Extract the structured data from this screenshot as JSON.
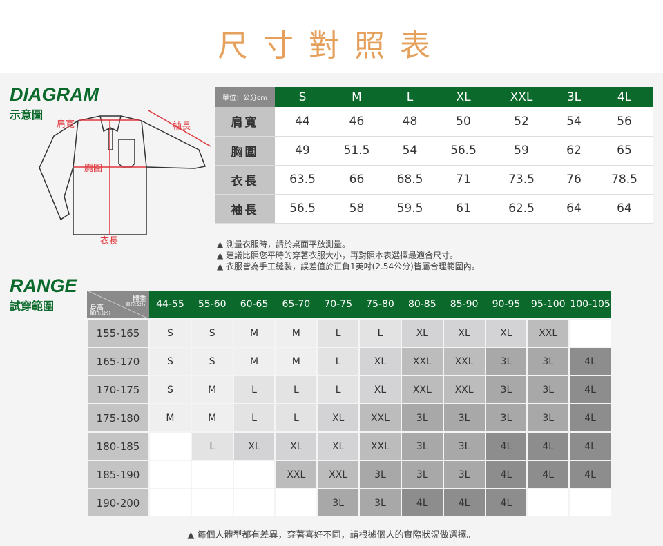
{
  "title": "尺寸對照表",
  "diagram": {
    "heading": "DIAGRAM",
    "subheading": "示意圖",
    "labels": {
      "shoulder": "肩寬",
      "sleeve": "袖長",
      "chest": "胸圍",
      "length": "衣長"
    }
  },
  "size_table": {
    "unit": "單位：公分cm",
    "sizes": [
      "S",
      "M",
      "L",
      "XL",
      "XXL",
      "3L",
      "4L"
    ],
    "rows": [
      {
        "label": "肩寬",
        "values": [
          "44",
          "46",
          "48",
          "50",
          "52",
          "54",
          "56"
        ]
      },
      {
        "label": "胸圍",
        "values": [
          "49",
          "51.5",
          "54",
          "56.5",
          "59",
          "62",
          "65"
        ]
      },
      {
        "label": "衣長",
        "values": [
          "63.5",
          "66",
          "68.5",
          "71",
          "73.5",
          "76",
          "78.5"
        ]
      },
      {
        "label": "袖長",
        "values": [
          "56.5",
          "58",
          "59.5",
          "61",
          "62.5",
          "64",
          "64"
        ]
      }
    ]
  },
  "notes": [
    "▲ 測量衣服時，請於桌面平放測量。",
    "▲ 建議比照您平時的穿著衣服大小，再對照本表選擇最適合尺寸。",
    "▲ 衣服皆為手工縫製，誤差值於正負1英吋(2.54公分)皆屬合理範圍內。"
  ],
  "range": {
    "heading": "RANGE",
    "subheading": "試穿範圍",
    "corner": {
      "weight": "體重",
      "weight_unit": "單位:公斤",
      "height": "身高",
      "height_unit": "單位:公分"
    },
    "weights": [
      "44-55",
      "55-60",
      "60-65",
      "65-70",
      "70-75",
      "75-80",
      "80-85",
      "85-90",
      "90-95",
      "95-100",
      "100-105"
    ],
    "rows": [
      {
        "label": "155-165",
        "values": [
          "S",
          "S",
          "M",
          "M",
          "L",
          "L",
          "XL",
          "XL",
          "XL",
          "XXL",
          ""
        ]
      },
      {
        "label": "165-170",
        "values": [
          "S",
          "S",
          "M",
          "M",
          "L",
          "XL",
          "XXL",
          "XXL",
          "3L",
          "3L",
          "4L"
        ]
      },
      {
        "label": "170-175",
        "values": [
          "S",
          "M",
          "L",
          "L",
          "L",
          "XL",
          "XXL",
          "XXL",
          "3L",
          "3L",
          "4L"
        ]
      },
      {
        "label": "175-180",
        "values": [
          "M",
          "M",
          "L",
          "L",
          "XL",
          "XXL",
          "3L",
          "3L",
          "3L",
          "3L",
          "4L"
        ]
      },
      {
        "label": "180-185",
        "values": [
          "",
          "L",
          "XL",
          "XL",
          "XL",
          "XXL",
          "3L",
          "3L",
          "4L",
          "4L",
          "4L"
        ]
      },
      {
        "label": "185-190",
        "values": [
          "",
          "",
          "",
          "XXL",
          "XXL",
          "3L",
          "3L",
          "3L",
          "4L",
          "4L",
          "4L"
        ]
      },
      {
        "label": "190-200",
        "values": [
          "",
          "",
          "",
          "",
          "3L",
          "3L",
          "4L",
          "4L",
          "4L",
          "",
          ""
        ]
      }
    ]
  },
  "footer": "▲ 每個人體型都有差異，穿著喜好不同，請根據個人的實際狀況做選擇。",
  "colors": {
    "green": "#0b6a2b",
    "title": "#e5a05c",
    "measure": "#e0383e"
  }
}
